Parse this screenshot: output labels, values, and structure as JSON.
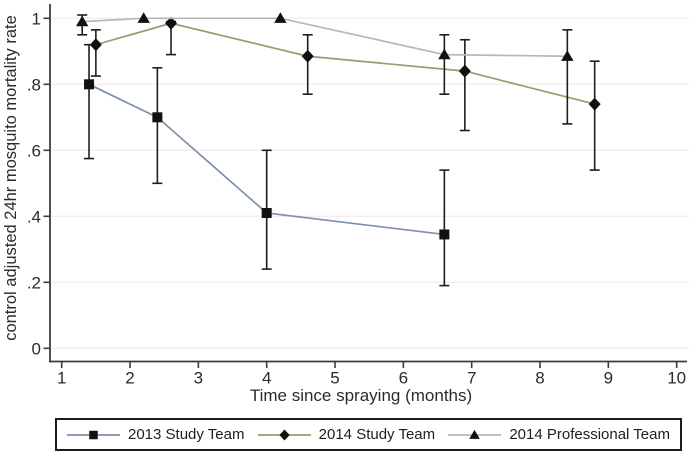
{
  "colors": {
    "background": "#ffffff",
    "axis": "#3d3d3d",
    "grid": "#f3eded",
    "tick_text": "#2b2b2b",
    "marker": "#111111",
    "error_bar": "#1e1e1e",
    "legend_border": "#1c1c1c"
  },
  "chart_data": {
    "type": "line",
    "title": "",
    "xlabel": "Time since spraying (months)",
    "ylabel": "control adjusted 24hr mosquito mortality rate",
    "xlim": [
      0.85,
      10.15
    ],
    "ylim": [
      0,
      1.02
    ],
    "grid": "horizontal-only",
    "legend_position": "bottom",
    "x_ticks": [
      {
        "value": 1,
        "label": "1"
      },
      {
        "value": 2,
        "label": "2"
      },
      {
        "value": 3,
        "label": "3"
      },
      {
        "value": 4,
        "label": "4"
      },
      {
        "value": 5,
        "label": "5"
      },
      {
        "value": 6,
        "label": "6"
      },
      {
        "value": 7,
        "label": "7"
      },
      {
        "value": 8,
        "label": "8"
      },
      {
        "value": 9,
        "label": "9"
      },
      {
        "value": 10,
        "label": "10"
      }
    ],
    "y_ticks": [
      {
        "value": 0,
        "label": "0"
      },
      {
        "value": 0.2,
        "label": ".2"
      },
      {
        "value": 0.4,
        "label": ".4"
      },
      {
        "value": 0.6,
        "label": ".6"
      },
      {
        "value": 0.8,
        "label": ".8"
      },
      {
        "value": 1,
        "label": "1"
      }
    ],
    "series": [
      {
        "name": "2013 Study Team",
        "marker": "square",
        "color": "#7e90aa",
        "points": [
          {
            "x": 1.4,
            "y": 0.8,
            "lo": 0.575,
            "hi": 0.92
          },
          {
            "x": 2.4,
            "y": 0.7,
            "lo": 0.5,
            "hi": 0.85
          },
          {
            "x": 4.0,
            "y": 0.41,
            "lo": 0.24,
            "hi": 0.6
          },
          {
            "x": 6.6,
            "y": 0.345,
            "lo": 0.19,
            "hi": 0.54
          }
        ]
      },
      {
        "name": "2014 Study Team",
        "marker": "diamond",
        "color": "#93a06e",
        "points": [
          {
            "x": 1.5,
            "y": 0.92,
            "lo": 0.825,
            "hi": 0.965
          },
          {
            "x": 2.6,
            "y": 0.985,
            "lo": 0.89,
            "hi": 0.99
          },
          {
            "x": 4.6,
            "y": 0.885,
            "lo": 0.77,
            "hi": 0.95
          },
          {
            "x": 6.9,
            "y": 0.84,
            "lo": 0.66,
            "hi": 0.935
          },
          {
            "x": 8.8,
            "y": 0.74,
            "lo": 0.54,
            "hi": 0.87
          }
        ]
      },
      {
        "name": "2014 Professional Team",
        "marker": "triangle",
        "color": "#aebcb8",
        "points": [
          {
            "x": 1.3,
            "y": 0.99,
            "lo": 0.95,
            "hi": 1.01
          },
          {
            "x": 2.2,
            "y": 1.0
          },
          {
            "x": 4.2,
            "y": 1.0
          },
          {
            "x": 6.6,
            "y": 0.89,
            "lo": 0.77,
            "hi": 0.95
          },
          {
            "x": 8.4,
            "y": 0.885,
            "lo": 0.68,
            "hi": 0.965
          }
        ]
      }
    ]
  }
}
